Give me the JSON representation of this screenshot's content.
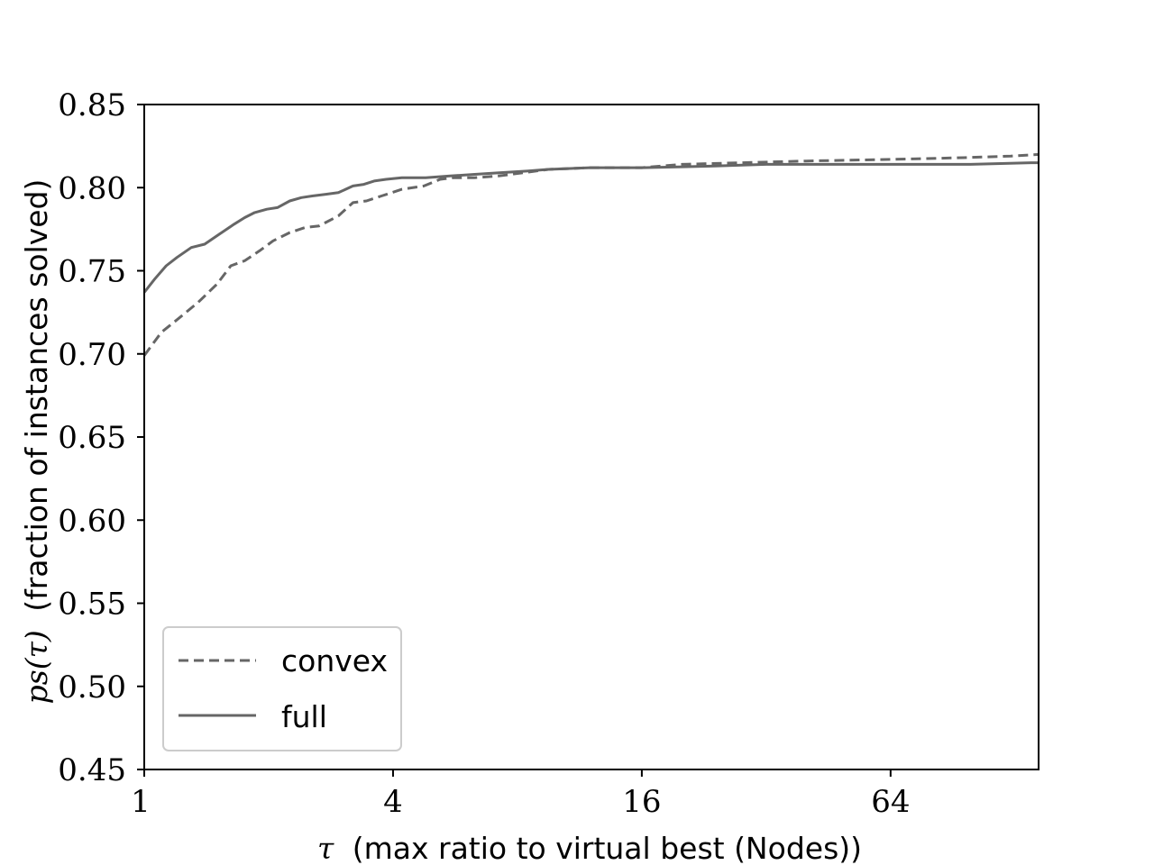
{
  "chart_data": {
    "type": "line",
    "title": "",
    "xlabel": "τ (max ratio to virtual best (Nodes))",
    "ylabel": "p_s(τ) (fraction of instances solved)",
    "ylabel_parts": {
      "math": "ps(τ)",
      "text": "(fraction of instances solved)"
    },
    "xlabel_parts": {
      "math": "τ",
      "text": "(max ratio to virtual best (Nodes))"
    },
    "x_scale": "log2",
    "xlim": [
      1,
      146
    ],
    "ylim": [
      0.45,
      0.85
    ],
    "x_ticks": [
      1,
      4,
      16,
      64
    ],
    "x_tick_labels": [
      "1",
      "4",
      "16",
      "64"
    ],
    "y_ticks": [
      0.45,
      0.5,
      0.55,
      0.6,
      0.65,
      0.7,
      0.75,
      0.8,
      0.85
    ],
    "y_tick_labels": [
      "0.45",
      "0.50",
      "0.55",
      "0.60",
      "0.65",
      "0.70",
      "0.75",
      "0.80",
      "0.85"
    ],
    "grid": false,
    "legend_position": "lower-left",
    "series": [
      {
        "name": "convex",
        "style": "dashed",
        "color": "#666666",
        "x": [
          1,
          1.1,
          1.22,
          1.35,
          1.5,
          1.62,
          1.75,
          1.9,
          2.05,
          2.25,
          2.45,
          2.65,
          2.95,
          3.2,
          3.45,
          3.75,
          4.2,
          4.75,
          5.2,
          5.6,
          6.3,
          7.2,
          8.3,
          9.5,
          12,
          16,
          20,
          28,
          40,
          64,
          96,
          125,
          146
        ],
        "y": [
          0.699,
          0.713,
          0.722,
          0.731,
          0.742,
          0.753,
          0.756,
          0.762,
          0.768,
          0.773,
          0.776,
          0.777,
          0.783,
          0.791,
          0.792,
          0.795,
          0.799,
          0.801,
          0.805,
          0.806,
          0.806,
          0.807,
          0.809,
          0.811,
          0.812,
          0.812,
          0.814,
          0.815,
          0.816,
          0.817,
          0.818,
          0.819,
          0.82
        ]
      },
      {
        "name": "full",
        "style": "solid",
        "color": "#666666",
        "x": [
          1,
          1.06,
          1.13,
          1.2,
          1.3,
          1.4,
          1.52,
          1.65,
          1.75,
          1.85,
          1.98,
          2.1,
          2.25,
          2.4,
          2.55,
          2.75,
          2.95,
          3.2,
          3.4,
          3.6,
          3.85,
          4.2,
          4.8,
          5.5,
          6.3,
          7.3,
          8.5,
          9.5,
          12,
          16,
          24,
          32,
          64,
          100,
          140,
          146
        ],
        "y": [
          0.737,
          0.745,
          0.753,
          0.758,
          0.764,
          0.766,
          0.772,
          0.778,
          0.782,
          0.785,
          0.787,
          0.788,
          0.792,
          0.794,
          0.795,
          0.796,
          0.797,
          0.801,
          0.802,
          0.804,
          0.805,
          0.806,
          0.806,
          0.807,
          0.808,
          0.809,
          0.81,
          0.811,
          0.812,
          0.812,
          0.813,
          0.814,
          0.814,
          0.814,
          0.815,
          0.815
        ]
      }
    ]
  }
}
